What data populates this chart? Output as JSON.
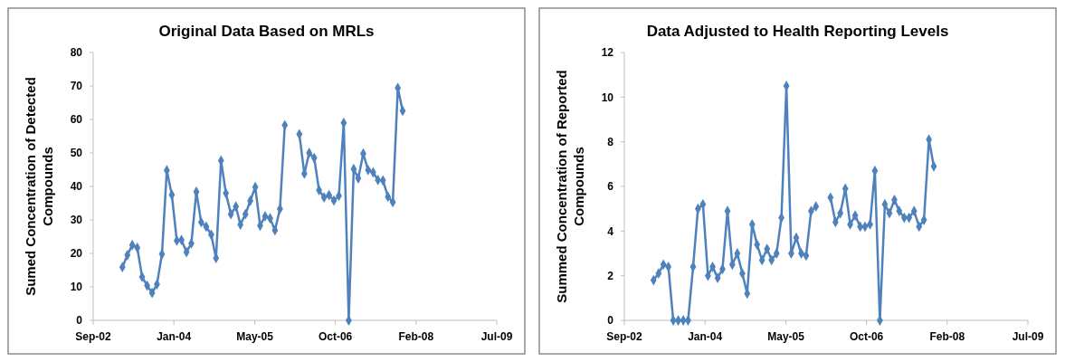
{
  "chart_data": [
    {
      "type": "line",
      "title": "Original Data Based on MRLs",
      "ylabel": "Sumed Concentration of Detected Compounds",
      "x": [
        "2003-03",
        "2003-04",
        "2003-05",
        "2003-06",
        "2003-07",
        "2003-08",
        "2003-09",
        "2003-10",
        "2003-11",
        "2003-12",
        "2004-01",
        "2004-02",
        "2004-03",
        "2004-04",
        "2004-05",
        "2004-06",
        "2004-07",
        "2004-08",
        "2004-09",
        "2004-10",
        "2004-11",
        "2004-12",
        "2005-01",
        "2005-02",
        "2005-03",
        "2005-04",
        "2005-05",
        "2005-06",
        "2005-07",
        "2005-08",
        "2005-09",
        "2005-10",
        "2005-11",
        "2005-12",
        "2006-01",
        "2006-02",
        "2006-03",
        "2006-04",
        "2006-05",
        "2006-06",
        "2006-07",
        "2006-08",
        "2006-09",
        "2006-10",
        "2006-11",
        "2006-12",
        "2007-01",
        "2007-02",
        "2007-03",
        "2007-04",
        "2007-05",
        "2007-06",
        "2007-07",
        "2007-08",
        "2007-09",
        "2007-10",
        "2007-11",
        "2007-12"
      ],
      "series": [
        {
          "color": "#4f81bd",
          "values": [
            15.9,
            19.5,
            22.5,
            21.7,
            13.0,
            10.4,
            8.2,
            10.8,
            19.8,
            44.8,
            37.5,
            23.8,
            24.0,
            20.4,
            23.0,
            38.4,
            29.3,
            28.0,
            25.6,
            18.6,
            47.7,
            38.0,
            31.7,
            34.0,
            28.6,
            31.7,
            35.7,
            39.8,
            28.3,
            31.1,
            30.5,
            26.9,
            33.3,
            58.3,
            null,
            null,
            55.6,
            43.8,
            50.0,
            48.5,
            38.9,
            36.7,
            37.4,
            35.8,
            37.2,
            59.0,
            0,
            45.2,
            42.4,
            49.8,
            44.9,
            44.2,
            41.9,
            41.8,
            36.9,
            35.3,
            69.4,
            62.6
          ]
        }
      ],
      "xlim": [
        "2002-09-01",
        "2009-07-06"
      ],
      "xticks": [
        {
          "value": "2002-09-01",
          "label": "Sep-02"
        },
        {
          "value": "2004-01-14",
          "label": "Jan-04"
        },
        {
          "value": "2005-05-29",
          "label": "May-05"
        },
        {
          "value": "2006-10-10",
          "label": "Oct-06"
        },
        {
          "value": "2008-02-22",
          "label": "Feb-08"
        },
        {
          "value": "2009-07-06",
          "label": "Jul-09"
        }
      ],
      "ylim": [
        0,
        80
      ],
      "yticks": [
        0,
        10,
        20,
        30,
        40,
        50,
        60,
        70,
        80
      ],
      "marker": "diamond",
      "line_style": "solid",
      "grid": false
    },
    {
      "type": "line",
      "title": "Data Adjusted to Health Reporting Levels",
      "ylabel": "Summed Concentration of Reported Compounds",
      "x": [
        "2003-03",
        "2003-04",
        "2003-05",
        "2003-06",
        "2003-07",
        "2003-08",
        "2003-09",
        "2003-10",
        "2003-11",
        "2003-12",
        "2004-01",
        "2004-02",
        "2004-03",
        "2004-04",
        "2004-05",
        "2004-06",
        "2004-07",
        "2004-08",
        "2004-09",
        "2004-10",
        "2004-11",
        "2004-12",
        "2005-01",
        "2005-02",
        "2005-03",
        "2005-04",
        "2005-05",
        "2005-06",
        "2005-07",
        "2005-08",
        "2005-09",
        "2005-10",
        "2005-11",
        "2005-12",
        "2006-01",
        "2006-02",
        "2006-03",
        "2006-04",
        "2006-05",
        "2006-06",
        "2006-07",
        "2006-08",
        "2006-09",
        "2006-10",
        "2006-11",
        "2006-12",
        "2007-01",
        "2007-02",
        "2007-03",
        "2007-04",
        "2007-05",
        "2007-06",
        "2007-07",
        "2007-08",
        "2007-09",
        "2007-10",
        "2007-11",
        "2007-12"
      ],
      "series": [
        {
          "color": "#4f81bd",
          "values": [
            1.8,
            2.1,
            2.5,
            2.4,
            0,
            0,
            0,
            0,
            2.4,
            5.0,
            5.2,
            2.0,
            2.4,
            1.9,
            2.3,
            4.9,
            2.5,
            3.0,
            2.1,
            1.2,
            4.3,
            3.4,
            2.7,
            3.2,
            2.7,
            3.0,
            4.6,
            10.5,
            3.0,
            3.7,
            3.0,
            2.9,
            4.9,
            5.1,
            null,
            null,
            5.5,
            4.4,
            4.8,
            5.9,
            4.3,
            4.7,
            4.2,
            4.2,
            4.3,
            6.7,
            0,
            5.2,
            4.8,
            5.4,
            4.9,
            4.6,
            4.6,
            4.9,
            4.2,
            4.5,
            8.1,
            6.9
          ]
        }
      ],
      "xlim": [
        "2002-09-01",
        "2009-07-06"
      ],
      "xticks": [
        {
          "value": "2002-09-01",
          "label": "Sep-02"
        },
        {
          "value": "2004-01-14",
          "label": "Jan-04"
        },
        {
          "value": "2005-05-29",
          "label": "May-05"
        },
        {
          "value": "2006-10-10",
          "label": "Oct-06"
        },
        {
          "value": "2008-02-22",
          "label": "Feb-08"
        },
        {
          "value": "2009-07-06",
          "label": "Jul-09"
        }
      ],
      "ylim": [
        0,
        12
      ],
      "yticks": [
        0,
        2,
        4,
        6,
        8,
        10,
        12
      ],
      "marker": "diamond",
      "line_style": "solid",
      "grid": false
    }
  ]
}
